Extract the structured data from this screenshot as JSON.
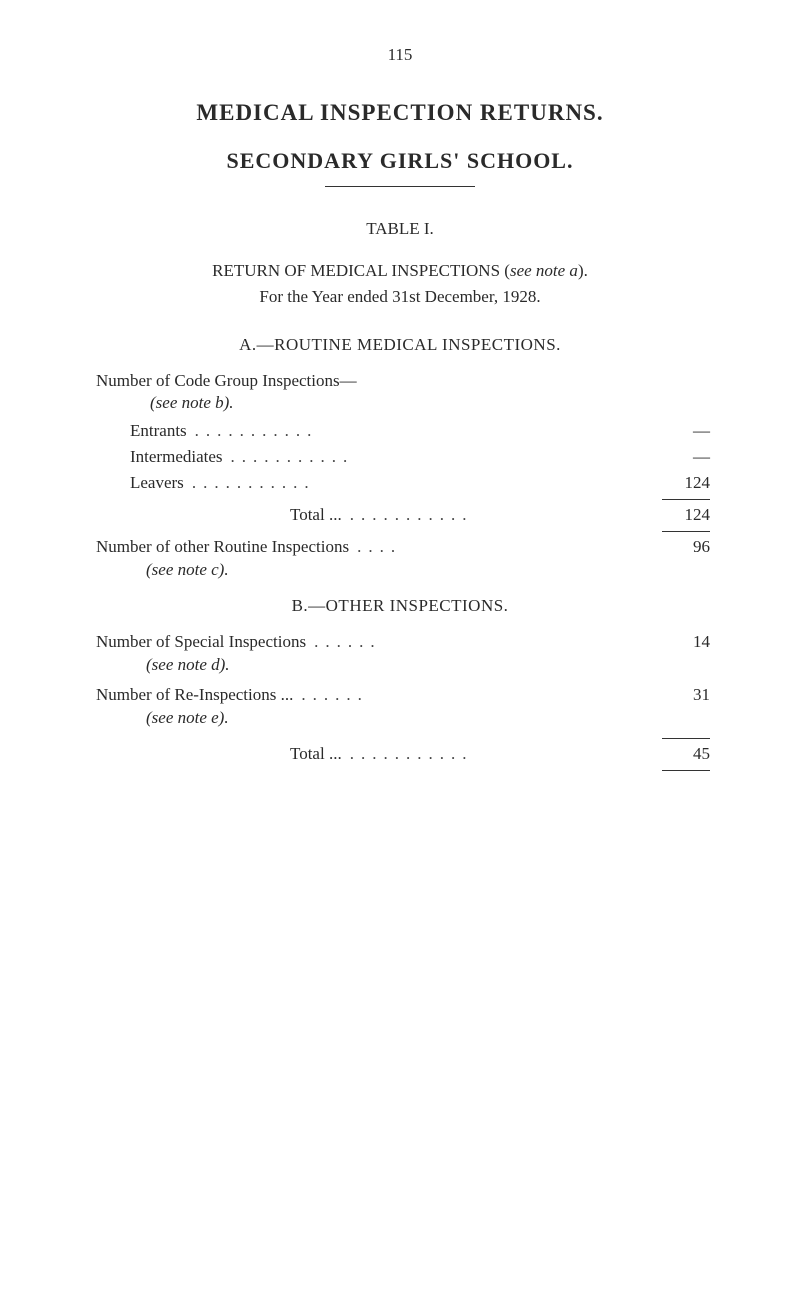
{
  "page_number": "115",
  "titles": {
    "main": "MEDICAL INSPECTION RETURNS.",
    "sub": "SECONDARY GIRLS' SCHOOL."
  },
  "table_label": "TABLE I.",
  "return_heading": {
    "prefix": "RETURN OF MEDICAL INSPECTIONS (",
    "italic": "see note a",
    "suffix": ")."
  },
  "year_line": "For the Year ended 31st December, 1928.",
  "section_a": {
    "heading": "A.—ROUTINE MEDICAL INSPECTIONS.",
    "group_line1": "Number of Code Group Inspections—",
    "group_line2_italic": "(see note b).",
    "rows": {
      "entrants": {
        "label": "Entrants",
        "value": "—"
      },
      "intermediates": {
        "label": "Intermediates",
        "value": "—"
      },
      "leavers": {
        "label": "Leavers",
        "value": "124"
      }
    },
    "total": {
      "label": "Total ...",
      "value": "124"
    },
    "other_routine": {
      "label": "Number of other Routine Inspections",
      "value": "96",
      "note_italic": "(see note c)."
    }
  },
  "section_b": {
    "heading": "B.—OTHER INSPECTIONS.",
    "special": {
      "label": "Number of Special Inspections",
      "value": "14",
      "note_italic": "(see note d)."
    },
    "reinspections": {
      "label": "Number of Re-Inspections ...",
      "value": "31",
      "note_italic": "(see note e)."
    },
    "total": {
      "label": "Total ...",
      "value": "45"
    }
  },
  "dots": "..........."
}
